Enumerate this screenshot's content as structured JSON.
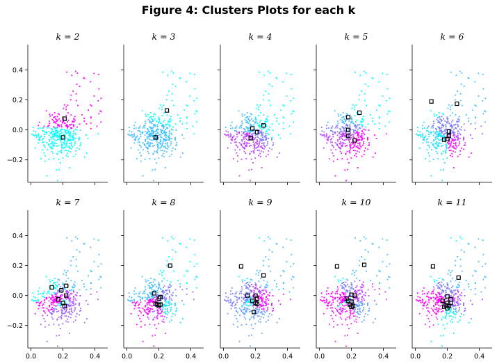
{
  "figure_title": "Figure 4: Clusters Plots for each k",
  "colors": {
    "cyan": "#00ffff",
    "magenta": "#ff00ff",
    "axis": "#000000",
    "centroid_edge": "#000000"
  },
  "chart_data": [
    {
      "type": "scatter",
      "title": "k = 2",
      "k": 2,
      "xlim": [
        -0.02,
        0.48
      ],
      "ylim": [
        -0.35,
        0.57
      ],
      "xticks": [
        "0.0",
        "0.2",
        "0.4"
      ],
      "yticks": [
        "0.4",
        "0.2",
        "0.0",
        "-0.2"
      ],
      "centroids": [
        [
          0.21,
          0.075
        ],
        [
          0.2,
          -0.05
        ]
      ]
    },
    {
      "type": "scatter",
      "title": "k = 3",
      "k": 3,
      "xlim": [
        -0.02,
        0.48
      ],
      "ylim": [
        -0.35,
        0.57
      ],
      "xticks": [
        "0.0",
        "0.2",
        "0.4"
      ],
      "yticks": [
        "0.4",
        "0.2",
        "0.0",
        "-0.2"
      ],
      "centroids": [
        [
          0.25,
          0.13
        ],
        [
          0.18,
          -0.05
        ],
        [
          0.18,
          -0.05
        ]
      ]
    },
    {
      "type": "scatter",
      "title": "k = 4",
      "k": 4,
      "xlim": [
        -0.02,
        0.48
      ],
      "ylim": [
        -0.35,
        0.57
      ],
      "xticks": [
        "0.0",
        "0.2",
        "0.4"
      ],
      "yticks": [
        "0.4",
        "0.2",
        "0.0",
        "-0.2"
      ],
      "centroids": [
        [
          0.25,
          0.03
        ],
        [
          0.18,
          0.01
        ],
        [
          0.21,
          -0.015
        ],
        [
          0.17,
          -0.055
        ]
      ]
    },
    {
      "type": "scatter",
      "title": "k = 5",
      "k": 5,
      "xlim": [
        -0.02,
        0.48
      ],
      "ylim": [
        -0.35,
        0.57
      ],
      "xticks": [
        "0.0",
        "0.2",
        "0.4"
      ],
      "yticks": [
        "0.4",
        "0.2",
        "0.0",
        "-0.2"
      ],
      "centroids": [
        [
          0.25,
          0.115
        ],
        [
          0.18,
          0.085
        ],
        [
          0.18,
          0.0
        ],
        [
          0.18,
          -0.04
        ],
        [
          0.22,
          -0.07
        ]
      ]
    },
    {
      "type": "scatter",
      "title": "k = 6",
      "k": 6,
      "xlim": [
        -0.02,
        0.48
      ],
      "ylim": [
        -0.35,
        0.57
      ],
      "xticks": [
        "0.0",
        "0.2",
        "0.4"
      ],
      "yticks": [
        "0.4",
        "0.2",
        "0.0",
        "-0.2"
      ],
      "centroids": [
        [
          0.1,
          0.19
        ],
        [
          0.26,
          0.175
        ],
        [
          0.21,
          -0.01
        ],
        [
          0.21,
          -0.04
        ],
        [
          0.2,
          -0.06
        ],
        [
          0.18,
          -0.065
        ]
      ]
    },
    {
      "type": "scatter",
      "title": "k = 7",
      "k": 7,
      "xlim": [
        -0.02,
        0.48
      ],
      "ylim": [
        -0.35,
        0.57
      ],
      "xticks": [
        "0.0",
        "0.2",
        "0.4"
      ],
      "yticks": [
        "0.4",
        "0.2",
        "0.0",
        "-0.2"
      ],
      "centroids": [
        [
          0.13,
          0.055
        ],
        [
          0.22,
          0.065
        ],
        [
          0.19,
          0.035
        ],
        [
          0.22,
          0.0
        ],
        [
          0.17,
          -0.025
        ],
        [
          0.2,
          -0.05
        ],
        [
          0.21,
          -0.07
        ]
      ]
    },
    {
      "type": "scatter",
      "title": "k = 8",
      "k": 8,
      "xlim": [
        -0.02,
        0.48
      ],
      "ylim": [
        -0.35,
        0.57
      ],
      "xticks": [
        "0.0",
        "0.2",
        "0.4"
      ],
      "yticks": [
        "0.4",
        "0.2",
        "0.0",
        "-0.2"
      ],
      "centroids": [
        [
          0.27,
          0.2
        ],
        [
          0.17,
          0.015
        ],
        [
          0.21,
          -0.01
        ],
        [
          0.2,
          -0.02
        ],
        [
          0.18,
          -0.055
        ],
        [
          0.21,
          -0.06
        ],
        [
          0.19,
          -0.06
        ],
        [
          0.2,
          -0.065
        ]
      ]
    },
    {
      "type": "scatter",
      "title": "k = 9",
      "k": 9,
      "xlim": [
        -0.02,
        0.48
      ],
      "ylim": [
        -0.35,
        0.57
      ],
      "xticks": [
        "0.0",
        "0.2",
        "0.4"
      ],
      "yticks": [
        "0.4",
        "0.2",
        "0.0",
        "-0.2"
      ],
      "centroids": [
        [
          0.11,
          0.195
        ],
        [
          0.25,
          0.135
        ],
        [
          0.15,
          0.0
        ],
        [
          0.2,
          0.0
        ],
        [
          0.21,
          -0.02
        ],
        [
          0.18,
          -0.035
        ],
        [
          0.2,
          -0.05
        ],
        [
          0.21,
          -0.055
        ],
        [
          0.19,
          -0.11
        ]
      ]
    },
    {
      "type": "scatter",
      "title": "k = 10",
      "k": 10,
      "xlim": [
        -0.02,
        0.48
      ],
      "ylim": [
        -0.35,
        0.57
      ],
      "xticks": [
        "0.0",
        "0.2",
        "0.4"
      ],
      "yticks": [
        "0.4",
        "0.2",
        "0.0",
        "-0.2"
      ],
      "centroids": [
        [
          0.11,
          0.195
        ],
        [
          0.28,
          0.205
        ],
        [
          0.2,
          0.005
        ],
        [
          0.22,
          0.0
        ],
        [
          0.17,
          -0.02
        ],
        [
          0.18,
          -0.035
        ],
        [
          0.2,
          -0.04
        ],
        [
          0.19,
          -0.06
        ],
        [
          0.21,
          -0.07
        ],
        [
          0.2,
          -0.075
        ]
      ]
    },
    {
      "type": "scatter",
      "title": "k = 11",
      "k": 11,
      "xlim": [
        -0.02,
        0.48
      ],
      "ylim": [
        -0.35,
        0.57
      ],
      "xticks": [
        "0.0",
        "0.2",
        "0.4"
      ],
      "yticks": [
        "0.4",
        "0.2",
        "0.0",
        "-0.2"
      ],
      "centroids": [
        [
          0.11,
          0.195
        ],
        [
          0.27,
          0.12
        ],
        [
          0.2,
          -0.005
        ],
        [
          0.22,
          -0.025
        ],
        [
          0.17,
          -0.035
        ],
        [
          0.2,
          -0.05
        ],
        [
          0.22,
          -0.05
        ],
        [
          0.19,
          -0.065
        ],
        [
          0.21,
          -0.07
        ],
        [
          0.18,
          -0.075
        ],
        [
          0.2,
          -0.085
        ]
      ]
    }
  ]
}
